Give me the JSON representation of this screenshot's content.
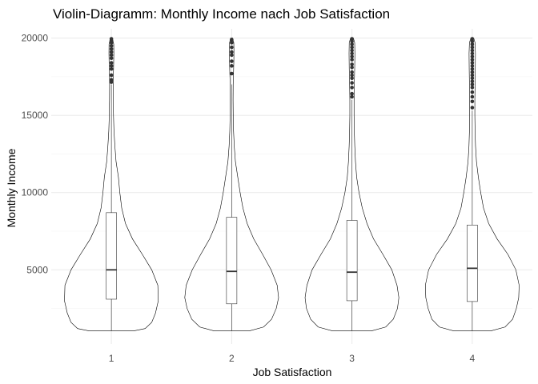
{
  "chart_data": {
    "type": "violin",
    "title": "Violin-Diagramm: Monthly Income nach Job Satisfaction",
    "xlabel": "Job Satisfaction",
    "ylabel": "Monthly Income",
    "categories": [
      "1",
      "2",
      "3",
      "4"
    ],
    "ylim": [
      200,
      20600
    ],
    "y_ticks": [
      5000,
      10000,
      15000,
      20000
    ],
    "grid": true,
    "legend": "none",
    "groups": [
      {
        "category": "1",
        "box": {
          "min": 1050,
          "q1": 3100,
          "median": 5000,
          "q3": 8700,
          "whisker_high": 17000
        },
        "outliers": [
          17150,
          17300,
          17600,
          18000,
          18200,
          18400,
          18700,
          18900,
          19100,
          19300,
          19500,
          19700,
          19850,
          19950
        ],
        "density": [
          [
            1050,
            0.48
          ],
          [
            1200,
            0.72
          ],
          [
            1600,
            0.86
          ],
          [
            2200,
            0.94
          ],
          [
            3000,
            1.0
          ],
          [
            4000,
            0.99
          ],
          [
            5000,
            0.86
          ],
          [
            6000,
            0.66
          ],
          [
            7000,
            0.45
          ],
          [
            8000,
            0.3
          ],
          [
            9000,
            0.22
          ],
          [
            10000,
            0.18
          ],
          [
            11000,
            0.15
          ],
          [
            12000,
            0.1
          ],
          [
            13000,
            0.075
          ],
          [
            14000,
            0.055
          ],
          [
            15000,
            0.045
          ],
          [
            16000,
            0.04
          ],
          [
            17000,
            0.038
          ],
          [
            17500,
            0.04
          ],
          [
            18000,
            0.046
          ],
          [
            19000,
            0.052
          ],
          [
            19600,
            0.05
          ],
          [
            20000,
            0.02
          ]
        ]
      },
      {
        "category": "2",
        "box": {
          "min": 1050,
          "q1": 2800,
          "median": 4900,
          "q3": 8400,
          "whisker_high": 17000
        },
        "outliers": [
          17700,
          18200,
          18500,
          18900,
          19100,
          19400,
          19700,
          19900
        ],
        "density": [
          [
            1050,
            0.38
          ],
          [
            1300,
            0.68
          ],
          [
            1800,
            0.85
          ],
          [
            2500,
            0.95
          ],
          [
            3200,
            1.0
          ],
          [
            4000,
            0.97
          ],
          [
            5000,
            0.84
          ],
          [
            6000,
            0.66
          ],
          [
            7000,
            0.47
          ],
          [
            8000,
            0.33
          ],
          [
            9000,
            0.24
          ],
          [
            10000,
            0.18
          ],
          [
            11000,
            0.13
          ],
          [
            12000,
            0.08
          ],
          [
            13000,
            0.055
          ],
          [
            14000,
            0.04
          ],
          [
            15000,
            0.033
          ],
          [
            16000,
            0.03
          ],
          [
            17000,
            0.032
          ],
          [
            17800,
            0.04
          ],
          [
            18500,
            0.046
          ],
          [
            19200,
            0.048
          ],
          [
            19700,
            0.045
          ],
          [
            20000,
            0.02
          ]
        ]
      },
      {
        "category": "3",
        "box": {
          "min": 1050,
          "q1": 3000,
          "median": 4850,
          "q3": 8200,
          "whisker_high": 16000
        },
        "outliers": [
          16200,
          16400,
          16800,
          17100,
          17400,
          17600,
          17800,
          18100,
          18300,
          18600,
          18800,
          19000,
          19200,
          19400,
          19600,
          19800,
          19950
        ],
        "density": [
          [
            1050,
            0.42
          ],
          [
            1300,
            0.72
          ],
          [
            1800,
            0.88
          ],
          [
            2500,
            0.97
          ],
          [
            3200,
            1.0
          ],
          [
            4000,
            0.96
          ],
          [
            5000,
            0.85
          ],
          [
            6000,
            0.66
          ],
          [
            7000,
            0.46
          ],
          [
            8000,
            0.32
          ],
          [
            9000,
            0.22
          ],
          [
            10000,
            0.15
          ],
          [
            11000,
            0.1
          ],
          [
            12000,
            0.075
          ],
          [
            13000,
            0.06
          ],
          [
            14000,
            0.05
          ],
          [
            15000,
            0.045
          ],
          [
            16000,
            0.045
          ],
          [
            17000,
            0.05
          ],
          [
            18000,
            0.058
          ],
          [
            19000,
            0.062
          ],
          [
            19700,
            0.058
          ],
          [
            20000,
            0.03
          ]
        ]
      },
      {
        "category": "4",
        "box": {
          "min": 1050,
          "q1": 2950,
          "median": 5100,
          "q3": 7900,
          "whisker_high": 15300
        },
        "outliers": [
          15500,
          15900,
          16200,
          16500,
          16800,
          17000,
          17200,
          17400,
          17600,
          17800,
          18000,
          18200,
          18400,
          18600,
          18800,
          19000,
          19200,
          19400,
          19600,
          19800,
          19950
        ],
        "density": [
          [
            1050,
            0.4
          ],
          [
            1300,
            0.7
          ],
          [
            1800,
            0.86
          ],
          [
            2500,
            0.94
          ],
          [
            3200,
            0.99
          ],
          [
            4000,
            1.0
          ],
          [
            5000,
            0.93
          ],
          [
            6000,
            0.76
          ],
          [
            7000,
            0.53
          ],
          [
            8000,
            0.35
          ],
          [
            9000,
            0.24
          ],
          [
            10000,
            0.18
          ],
          [
            11000,
            0.13
          ],
          [
            12000,
            0.09
          ],
          [
            13000,
            0.07
          ],
          [
            14000,
            0.06
          ],
          [
            15000,
            0.055
          ],
          [
            16000,
            0.055
          ],
          [
            17000,
            0.06
          ],
          [
            18000,
            0.065
          ],
          [
            19000,
            0.068
          ],
          [
            19700,
            0.06
          ],
          [
            20000,
            0.03
          ]
        ]
      }
    ]
  }
}
